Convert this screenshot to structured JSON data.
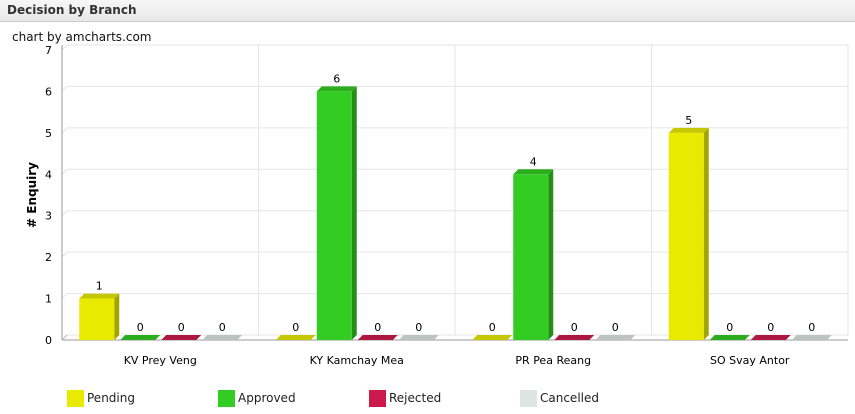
{
  "panel": {
    "title": "Decision by Branch"
  },
  "credit": "chart by amcharts.com",
  "colors": {
    "Pending": "#e8ea00",
    "Approved": "#33cc22",
    "Rejected": "#cc1a4d",
    "Cancelled": "#dde5e2"
  },
  "legend": {
    "items": [
      {
        "label": "Pending",
        "icon": "yellow-swatch"
      },
      {
        "label": "Approved",
        "icon": "green-swatch"
      },
      {
        "label": "Rejected",
        "icon": "crimson-swatch"
      },
      {
        "label": "Cancelled",
        "icon": "gray-swatch"
      }
    ]
  },
  "chart_data": {
    "type": "bar",
    "title": "",
    "xlabel": "",
    "ylabel": "# Enquiry",
    "ylim": [
      0,
      7
    ],
    "yticks": [
      "0",
      "1",
      "2",
      "3",
      "4",
      "5",
      "6",
      "7"
    ],
    "grid": true,
    "legend_position": "bottom",
    "categories": [
      "KV Prey Veng",
      "KY Kamchay Mea",
      "PR Pea Reang",
      "SO Svay Antor"
    ],
    "series": [
      {
        "name": "Pending",
        "values": [
          1,
          0,
          0,
          5
        ]
      },
      {
        "name": "Approved",
        "values": [
          0,
          6,
          4,
          0
        ]
      },
      {
        "name": "Rejected",
        "values": [
          0,
          0,
          0,
          0
        ]
      },
      {
        "name": "Cancelled",
        "values": [
          0,
          0,
          0,
          0
        ]
      }
    ],
    "data_labels": true
  }
}
